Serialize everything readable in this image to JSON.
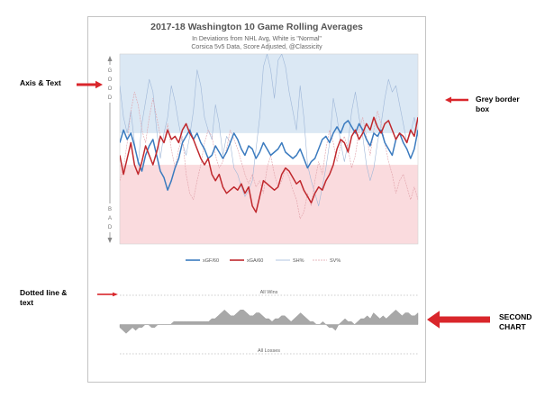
{
  "annotations": {
    "axis_text": "Axis & Text",
    "grey_border": [
      "Grey border",
      "box"
    ],
    "dotted_line": [
      "Dotted line &",
      "text"
    ],
    "second_chart": [
      "SECOND",
      "CHART"
    ]
  },
  "colors": {
    "xgf": "#3b7bbf",
    "xga": "#c0282d",
    "sh": "#9fb7d8",
    "sv": "#e0a0a8",
    "good_band": "#dbe8f4",
    "bad_band": "#fadbde",
    "arrow": "#d9262b",
    "second_area": "#a8a8a8"
  },
  "chart_data": [
    {
      "type": "line",
      "title": "2017-18 Washington 10 Game Rolling Averages",
      "subtitle": [
        "In Deviations from NHL Avg, White is \"Normal\"",
        "Corsica 5v5 Data, Score Adjusted, @Classicity"
      ],
      "y_axis_text": {
        "top": "GOOD",
        "bottom": "BAD"
      },
      "ylim": [
        -3,
        3
      ],
      "normal_band": [
        -0.5,
        0.5
      ],
      "legend": [
        "xGF/60",
        "xGA/60",
        "SH%",
        "SV%"
      ],
      "series": [
        {
          "name": "xGF/60",
          "values": [
            0.2,
            0.6,
            0.3,
            0.5,
            0.1,
            -0.4,
            -0.7,
            -0.2,
            0.1,
            0.3,
            -0.2,
            -0.7,
            -0.9,
            -1.3,
            -1.0,
            -0.6,
            -0.3,
            0.2,
            0.4,
            0.6,
            0.3,
            0.5,
            0.2,
            0.0,
            -0.3,
            -0.2,
            0.1,
            -0.1,
            -0.3,
            -0.1,
            0.2,
            0.5,
            0.3,
            0.0,
            -0.2,
            0.1,
            0.0,
            -0.3,
            -0.1,
            0.2,
            0.0,
            -0.2,
            -0.1,
            0.0,
            0.2,
            -0.1,
            -0.2,
            -0.3,
            -0.2,
            0.0,
            -0.3,
            -0.6,
            -0.4,
            -0.3,
            0.0,
            0.3,
            0.4,
            0.2,
            0.5,
            0.7,
            0.5,
            0.8,
            0.9,
            0.7,
            0.5,
            0.8,
            0.6,
            0.3,
            0.1,
            0.5,
            0.4,
            0.6,
            0.2,
            0.0,
            -0.2,
            0.3,
            0.5,
            0.2,
            0.0,
            -0.3,
            0.0,
            0.6
          ]
        },
        {
          "name": "xGA/60",
          "values": [
            -0.2,
            -0.8,
            -0.3,
            0.2,
            -0.5,
            -0.8,
            -0.4,
            0.1,
            -0.2,
            -0.5,
            -0.1,
            0.4,
            0.2,
            0.6,
            0.3,
            0.4,
            0.2,
            0.6,
            0.8,
            0.5,
            0.3,
            0.0,
            -0.3,
            -0.5,
            -0.3,
            -0.8,
            -1.0,
            -0.8,
            -1.2,
            -1.4,
            -1.3,
            -1.2,
            -1.3,
            -1.1,
            -1.4,
            -1.2,
            -1.8,
            -2.0,
            -1.5,
            -1.0,
            -1.1,
            -1.2,
            -1.3,
            -1.2,
            -0.8,
            -0.6,
            -0.7,
            -0.9,
            -1.1,
            -1.0,
            -1.3,
            -1.5,
            -1.7,
            -1.4,
            -1.2,
            -1.3,
            -1.0,
            -0.8,
            -0.5,
            0.0,
            0.3,
            0.2,
            -0.1,
            0.4,
            0.6,
            0.3,
            0.5,
            0.8,
            0.6,
            1.0,
            0.7,
            0.5,
            0.8,
            0.9,
            0.6,
            0.3,
            0.5,
            0.4,
            0.2,
            0.6,
            0.4,
            1.0
          ]
        },
        {
          "name": "SH%",
          "values": [
            2.0,
            1.0,
            0.5,
            1.2,
            0.2,
            -0.5,
            0.8,
            1.5,
            2.2,
            1.8,
            0.6,
            -0.3,
            0.5,
            1.0,
            2.0,
            1.5,
            0.8,
            0.2,
            -0.2,
            0.4,
            1.2,
            2.5,
            2.0,
            1.0,
            0.6,
            0.3,
            1.4,
            0.8,
            -0.2,
            0.4,
            0.2,
            -0.6,
            -0.8,
            -1.2,
            -1.5,
            -1.3,
            -1.0,
            0.0,
            1.0,
            2.6,
            3.0,
            2.5,
            1.6,
            2.8,
            3.0,
            2.6,
            1.8,
            1.2,
            0.6,
            2.0,
            1.0,
            -0.5,
            -1.0,
            -1.4,
            -1.8,
            -1.2,
            -0.6,
            0.2,
            1.6,
            1.0,
            0.2,
            -0.4,
            0.2,
            1.2,
            1.8,
            1.0,
            0.4,
            -0.5,
            -1.0,
            -0.6,
            0.2,
            0.8,
            1.6,
            2.2,
            1.8,
            2.0,
            1.4,
            0.8,
            0.2,
            0.5,
            1.0,
            0.4
          ]
        },
        {
          "name": "SV%",
          "values": [
            -1.0,
            -0.6,
            0.2,
            1.2,
            1.8,
            1.4,
            0.6,
            0.2,
            1.0,
            1.6,
            1.0,
            0.4,
            0.2,
            0.8,
            0.0,
            -0.6,
            0.0,
            0.4,
            -0.8,
            -1.4,
            -1.6,
            -1.0,
            -0.5,
            0.2,
            0.6,
            0.4,
            -0.2,
            -0.6,
            -0.4,
            0.0,
            0.6,
            0.3,
            0.0,
            -0.4,
            -0.8,
            -1.1,
            -0.8,
            -1.2,
            -1.0,
            -1.4,
            -0.6,
            -0.2,
            -0.8,
            -1.2,
            -1.0,
            -0.6,
            -0.9,
            -1.3,
            -1.6,
            -2.2,
            -2.0,
            -1.4,
            -1.8,
            -1.0,
            -0.4,
            -0.8,
            0.0,
            0.6,
            0.2,
            -0.4,
            0.1,
            0.4,
            0.0,
            -0.6,
            -0.2,
            0.6,
            1.0,
            0.4,
            -0.2,
            0.6,
            1.2,
            0.8,
            0.2,
            -0.4,
            -0.8,
            -1.4,
            -1.0,
            -0.8,
            -1.2,
            -1.6,
            -1.2,
            -1.6
          ]
        }
      ]
    },
    {
      "type": "area",
      "ylim": [
        -10,
        10
      ],
      "reference_lines": [
        {
          "label": "All Wins",
          "y": 10
        },
        {
          "label": "All Losses",
          "y": -10
        }
      ],
      "values": [
        -1,
        -2,
        -3,
        -2,
        -1,
        -2,
        -1,
        -1,
        0,
        0,
        -1,
        -1,
        0,
        0,
        0,
        0,
        0,
        1,
        1,
        1,
        1,
        1,
        1,
        1,
        1,
        1,
        1,
        1,
        1,
        2,
        2,
        3,
        4,
        5,
        4,
        3,
        3,
        4,
        5,
        5,
        4,
        3,
        3,
        4,
        4,
        3,
        2,
        2,
        1,
        2,
        2,
        3,
        3,
        2,
        1,
        2,
        3,
        4,
        3,
        2,
        1,
        1,
        0,
        0,
        1,
        0,
        -1,
        -1,
        -2,
        0,
        1,
        2,
        1,
        1,
        0,
        1,
        2,
        2,
        3,
        2,
        4,
        3,
        2,
        3,
        2,
        3,
        4,
        5,
        4,
        3,
        4,
        4,
        3,
        3,
        4
      ]
    }
  ]
}
